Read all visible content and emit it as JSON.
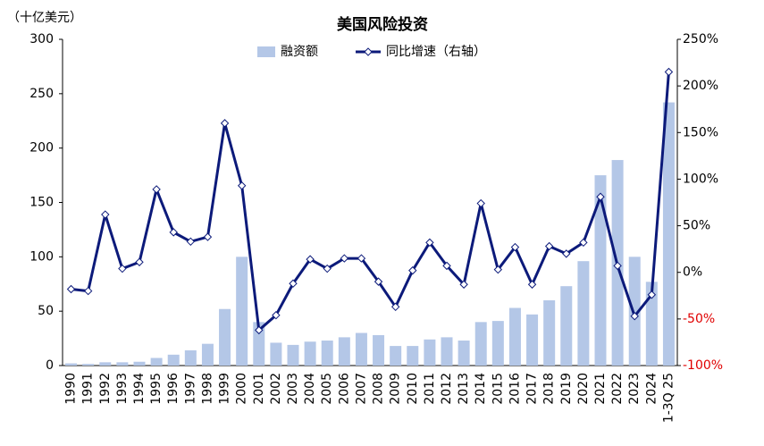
{
  "chart_data": {
    "type": "bar-line",
    "title": "美国风险投资",
    "y_label": "（十亿美元）",
    "categories": [
      "1990",
      "1991",
      "1992",
      "1993",
      "1994",
      "1995",
      "1996",
      "1997",
      "1998",
      "1999",
      "2000",
      "2001",
      "2002",
      "2003",
      "2004",
      "2005",
      "2006",
      "2007",
      "2008",
      "2009",
      "2010",
      "2011",
      "2012",
      "2013",
      "2014",
      "2015",
      "2016",
      "2017",
      "2018",
      "2019",
      "2020",
      "2021",
      "2022",
      "2023",
      "2024",
      "1-3Q 25"
    ],
    "series": [
      {
        "name": "融资额",
        "type": "bar",
        "color": "#b4c7e7",
        "values": [
          2,
          1.5,
          3,
          3,
          3.5,
          7,
          10,
          14,
          20,
          52,
          100,
          40,
          21,
          19,
          22,
          23,
          26,
          30,
          28,
          18,
          18,
          24,
          26,
          23,
          40,
          41,
          53,
          47,
          60,
          73,
          96,
          175,
          189,
          100,
          77,
          242
        ]
      },
      {
        "name": "同比增速（右轴）",
        "type": "line",
        "axis": "y2",
        "color": "#0c1a7a",
        "values": [
          -18,
          -20,
          62,
          4,
          11,
          89,
          43,
          33,
          38,
          160,
          93,
          -62,
          -46,
          -12,
          14,
          4,
          15,
          15,
          -10,
          -37,
          2,
          32,
          7,
          -13,
          74,
          3,
          27,
          -13,
          28,
          20,
          32,
          81,
          7,
          -47,
          -24,
          215
        ]
      }
    ],
    "ylim": [
      0,
      300
    ],
    "yticks": [
      0,
      50,
      100,
      150,
      200,
      250,
      300
    ],
    "y2lim": [
      -100,
      250
    ],
    "y2ticks": [
      {
        "value": -100,
        "label": "-100%"
      },
      {
        "value": -50,
        "label": "-50%"
      },
      {
        "value": 0,
        "label": "0%"
      },
      {
        "value": 50,
        "label": "50%"
      },
      {
        "value": 100,
        "label": "100%"
      },
      {
        "value": 150,
        "label": "150%"
      },
      {
        "value": 200,
        "label": "200%"
      },
      {
        "value": 250,
        "label": "250%"
      }
    ],
    "negative_tick_color": "#e00000",
    "grid": false,
    "legend": "top"
  }
}
